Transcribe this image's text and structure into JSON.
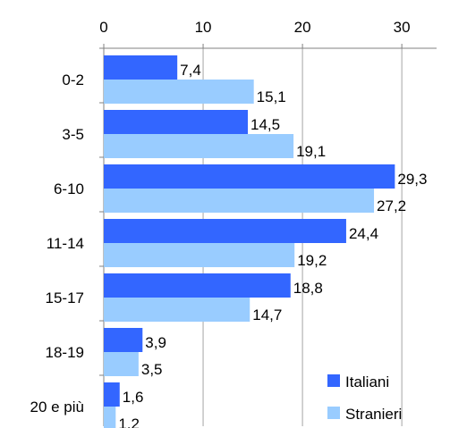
{
  "chart_data": {
    "type": "bar",
    "orientation": "horizontal",
    "title": "",
    "xlabel": "",
    "ylabel": "",
    "xlim": [
      0,
      33.5
    ],
    "xticks": [
      0,
      10,
      20,
      30
    ],
    "x_axis_position": "top",
    "grid": true,
    "legend_position": "bottom-right",
    "categories": [
      "0-2",
      "3-5",
      "6-10",
      "11-14",
      "15-17",
      "18-19",
      "20 e più"
    ],
    "series": [
      {
        "name": "Italiani",
        "color": "#3366ff",
        "values": [
          7.4,
          14.5,
          29.3,
          24.4,
          18.8,
          3.9,
          1.6
        ],
        "labels": [
          "7,4",
          "14,5",
          "29,3",
          "24,4",
          "18,8",
          "3,9",
          "1,6"
        ]
      },
      {
        "name": "Stranieri",
        "color": "#99ccff",
        "values": [
          15.1,
          19.1,
          27.2,
          19.2,
          14.7,
          3.5,
          1.2
        ],
        "labels": [
          "15,1",
          "19,1",
          "27,2",
          "19,2",
          "14,7",
          "3,5",
          "1,2"
        ]
      }
    ]
  }
}
